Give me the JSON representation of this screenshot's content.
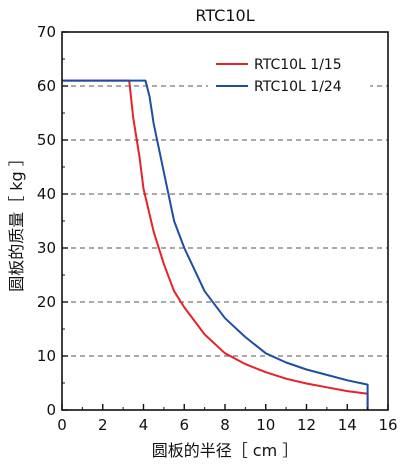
{
  "chart_data": {
    "type": "line",
    "title": "RTC10L",
    "xlabel": "圆板的半径［ cm ］",
    "ylabel": "圆板的质量［ kg ］",
    "xlim": [
      0,
      16
    ],
    "ylim": [
      0,
      70
    ],
    "x_ticks": [
      "0",
      "2",
      "4",
      "6",
      "8",
      "10",
      "12",
      "14",
      "16"
    ],
    "y_ticks": [
      "0",
      "10",
      "20",
      "30",
      "40",
      "50",
      "60",
      "70"
    ],
    "grid": "horizontal-dashed",
    "legend_position": "top-right",
    "series": [
      {
        "name": "RTC10L 1/15",
        "color": "#e8202a",
        "points": [
          [
            0,
            61
          ],
          [
            3.3,
            61
          ],
          [
            3.5,
            54
          ],
          [
            3.8,
            47
          ],
          [
            4.0,
            41
          ],
          [
            4.5,
            33
          ],
          [
            5.0,
            27
          ],
          [
            5.5,
            22
          ],
          [
            6.0,
            19
          ],
          [
            7.0,
            14
          ],
          [
            8.0,
            10.5
          ],
          [
            9.0,
            8.5
          ],
          [
            10.0,
            7
          ],
          [
            11.0,
            5.8
          ],
          [
            12.0,
            4.9
          ],
          [
            13.0,
            4.2
          ],
          [
            14.0,
            3.5
          ],
          [
            15.0,
            3
          ],
          [
            15.0,
            0
          ]
        ]
      },
      {
        "name": "RTC10L 1/24",
        "color": "#1c4ea3",
        "points": [
          [
            0,
            61
          ],
          [
            4.1,
            61
          ],
          [
            4.3,
            58
          ],
          [
            4.5,
            53
          ],
          [
            5.0,
            44
          ],
          [
            5.5,
            35
          ],
          [
            6.0,
            30
          ],
          [
            7.0,
            22
          ],
          [
            8.0,
            17
          ],
          [
            9.0,
            13.5
          ],
          [
            10.0,
            10.5
          ],
          [
            11.0,
            8.8
          ],
          [
            12.0,
            7.5
          ],
          [
            13.0,
            6.5
          ],
          [
            14.0,
            5.5
          ],
          [
            15.0,
            4.7
          ],
          [
            15.0,
            0
          ]
        ]
      }
    ]
  }
}
